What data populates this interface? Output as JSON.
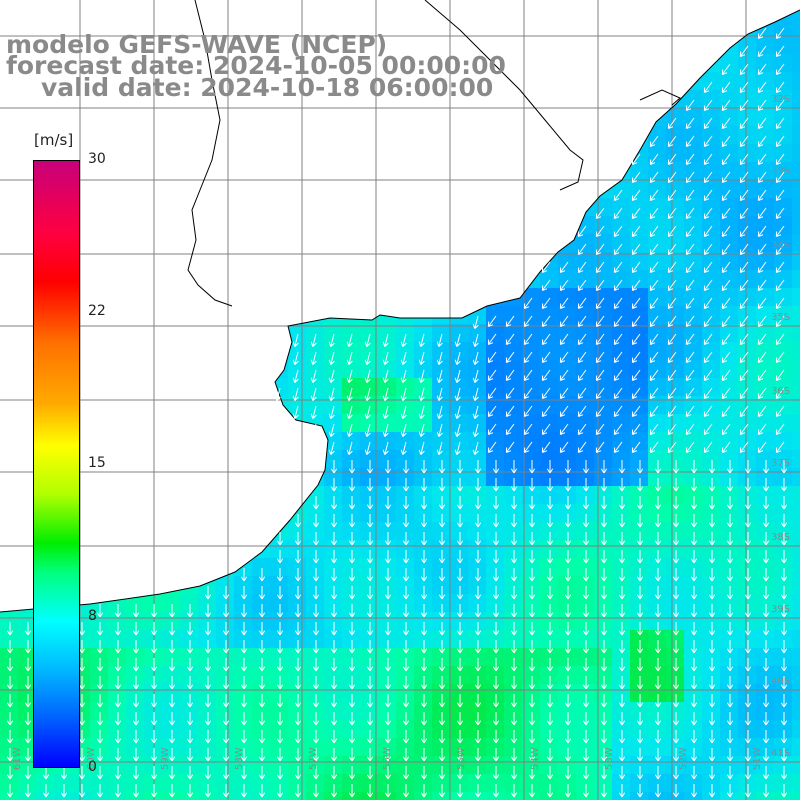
{
  "title": {
    "model": "modelo GEFS-WAVE (NCEP)",
    "forecast": "forecast date: 2024-10-05 00:00:00",
    "valid": "valid date: 2024-10-18 06:00:00"
  },
  "colorbar": {
    "unit": "[m/s]",
    "ticks": [
      "30",
      "22",
      "15",
      "8",
      "0"
    ],
    "colors": [
      "#c8007a",
      "#ff0000",
      "#ff7000",
      "#ffff00",
      "#00ee00",
      "#00ffff",
      "#0060ff",
      "#0000ff"
    ]
  },
  "map": {
    "lat_labels": [
      "32S",
      "33S",
      "34S",
      "35S",
      "36S",
      "37S",
      "38S",
      "39S",
      "40S",
      "41S"
    ],
    "lon_labels": [
      "61W",
      "60W",
      "59W",
      "58W",
      "57W",
      "56W",
      "55W",
      "54W",
      "53W",
      "52W",
      "51W"
    ],
    "land_color": "#ffffff",
    "grid_color": "#808080",
    "coast_color": "#000000",
    "arrow_color": "#ffffff"
  }
}
